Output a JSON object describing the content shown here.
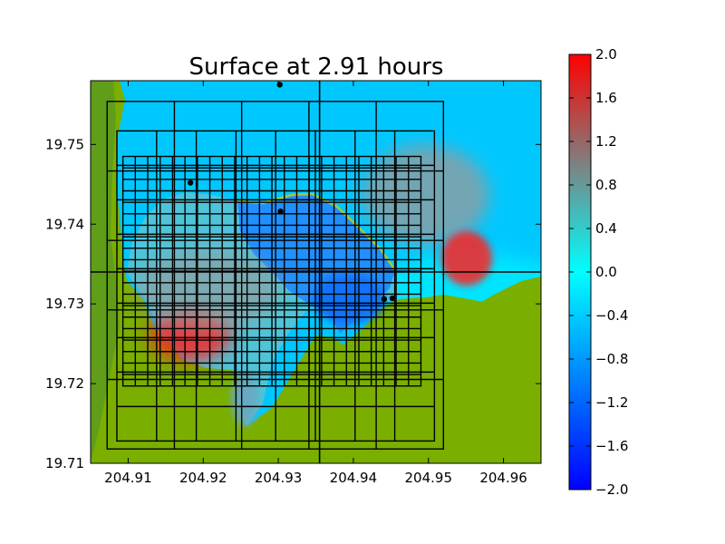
{
  "chart_data": {
    "type": "heatmap",
    "title": "Surface at 2.91 hours",
    "xlabel": "",
    "ylabel": "",
    "xlim": [
      204.905,
      204.965
    ],
    "ylim": [
      19.71,
      19.758
    ],
    "x_ticks": [
      204.91,
      204.92,
      204.93,
      204.94,
      204.95,
      204.96
    ],
    "x_tick_labels": [
      "204.91",
      "204.92",
      "204.93",
      "204.94",
      "204.95",
      "204.96"
    ],
    "y_ticks": [
      19.71,
      19.72,
      19.73,
      19.74,
      19.75
    ],
    "y_tick_labels": [
      "19.71",
      "19.72",
      "19.73",
      "19.74",
      "19.75"
    ],
    "colorbar": {
      "range": [
        -2.0,
        2.0
      ],
      "ticks": [
        2.0,
        1.6,
        1.2,
        0.8,
        0.4,
        0.0,
        -0.4,
        -0.8,
        -1.2,
        -1.6,
        -2.0
      ],
      "tick_labels": [
        "2.0",
        "1.6",
        "1.2",
        "0.8",
        "0.4",
        "0.0",
        "−0.4",
        "−0.8",
        "−1.2",
        "−1.6",
        "−2.0"
      ],
      "colors": [
        "#0000ff",
        "#00ffff",
        "#ff0000"
      ]
    },
    "colors": {
      "land": "#7aaf00",
      "land_dark": "#5a9a20",
      "water_deep": "#00c8ff",
      "water_shallow": "#00e8ff",
      "surge_high": "#ff2020",
      "surge_mid": "#9a9a9a",
      "surge_low": "#1070ff",
      "grid_lines": "#000000"
    },
    "gauges": [
      {
        "x": 204.9302,
        "y": 19.7575
      },
      {
        "x": 204.9183,
        "y": 19.7452
      },
      {
        "x": 204.9303,
        "y": 19.7416
      },
      {
        "x": 204.9441,
        "y": 19.7306
      },
      {
        "x": 204.9452,
        "y": 19.7307
      }
    ],
    "amr_outer_lines": {
      "x": 204.9355,
      "y": 19.734
    },
    "amr_level2_box": {
      "x": [
        204.9072,
        204.952
      ],
      "y": [
        19.7118,
        19.7554
      ]
    },
    "amr_level3_box": {
      "x": [
        204.9085,
        204.9508
      ],
      "y": [
        19.7128,
        19.7517
      ]
    },
    "amr_level4_box": {
      "x": [
        204.9093,
        204.949
      ],
      "y": [
        19.7197,
        19.7485
      ]
    }
  }
}
